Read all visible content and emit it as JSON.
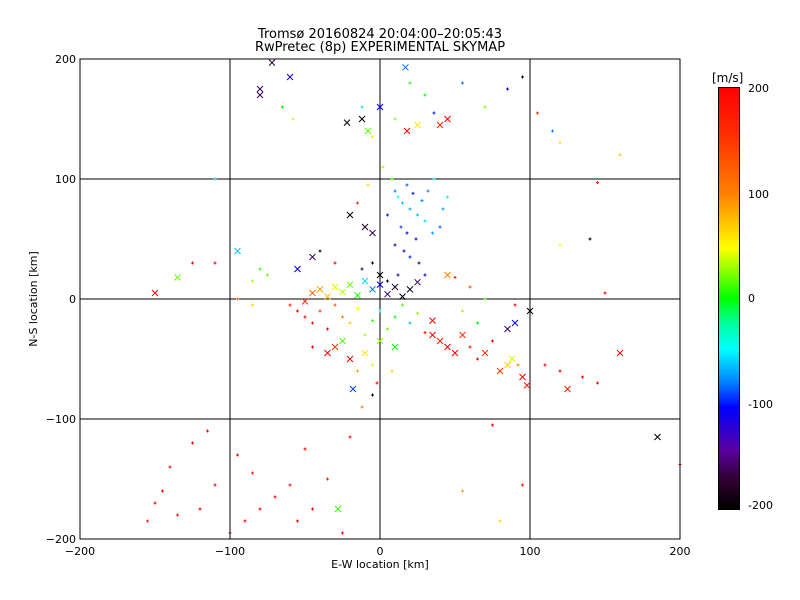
{
  "title_line1": "Tromsø 20160824 20:04:00–20:05:43",
  "title_line2": "RwPretec (8p) EXPERIMENTAL SKYMAP",
  "colorbar": {
    "unit": "[m/s]",
    "ticks": [
      "200",
      "100",
      "0",
      "-100",
      "-200"
    ],
    "range": [
      -200,
      200
    ],
    "colors_top_to_bottom": [
      "#ff0000",
      "#ff7f00",
      "#ffff00",
      "#00ff00",
      "#00ffff",
      "#0000ff",
      "#300030",
      "#000000"
    ]
  },
  "chart_data": {
    "type": "scatter",
    "title": "Tromsø 20160824 20:04:00–20:05:43",
    "subtitle": "RwPretec (8p) EXPERIMENTAL SKYMAP",
    "xlabel": "E-W location [km]",
    "ylabel": "N-S location [km]",
    "xlim": [
      -200,
      200
    ],
    "ylim": [
      -200,
      200
    ],
    "xticks": [
      "-200",
      "-100",
      "0",
      "100",
      "200"
    ],
    "yticks": [
      "-200",
      "-100",
      "0",
      "100",
      "200"
    ],
    "grid": true,
    "markers": [
      "x",
      "+"
    ],
    "colorbar_range": [
      -200,
      200
    ],
    "clusters": [
      {
        "description": "dense core",
        "x_range": [
          -60,
          60
        ],
        "y_range": [
          -40,
          20
        ],
        "velocity_mix": "red-yellow-green with blue"
      },
      {
        "description": "northern plume",
        "x_range": [
          5,
          50
        ],
        "y_range": [
          20,
          110
        ],
        "velocity_mix": "cyan-blue"
      },
      {
        "description": "far north scattered",
        "x_range": [
          -80,
          100
        ],
        "y_range": [
          110,
          200
        ],
        "velocity_mix": "mixed"
      },
      {
        "description": "southeast tail",
        "x_range": [
          30,
          170
        ],
        "y_range": [
          -80,
          -20
        ],
        "velocity_mix": "red"
      },
      {
        "description": "southwest scattered",
        "x_range": [
          -160,
          -80
        ],
        "y_range": [
          -200,
          -110
        ],
        "velocity_mix": "red"
      }
    ],
    "points": [
      [
        -80,
        175,
        -150,
        "x"
      ],
      [
        -80,
        170,
        -160,
        "x"
      ],
      [
        -72,
        197,
        -170,
        "x"
      ],
      [
        -60,
        185,
        -120,
        "x"
      ],
      [
        -65,
        160,
        0,
        "+"
      ],
      [
        -58,
        150,
        80,
        "+"
      ],
      [
        -22,
        147,
        -210,
        "x"
      ],
      [
        -12,
        150,
        -200,
        "x"
      ],
      [
        -8,
        140,
        30,
        "x"
      ],
      [
        -5,
        135,
        110,
        "+"
      ],
      [
        0,
        160,
        -100,
        "x"
      ],
      [
        10,
        150,
        50,
        "+"
      ],
      [
        18,
        140,
        200,
        "x"
      ],
      [
        25,
        145,
        110,
        "x"
      ],
      [
        30,
        170,
        0,
        "+"
      ],
      [
        36,
        155,
        -90,
        "+"
      ],
      [
        40,
        145,
        190,
        "x"
      ],
      [
        45,
        150,
        200,
        "x"
      ],
      [
        55,
        180,
        -60,
        "+"
      ],
      [
        70,
        160,
        40,
        "+"
      ],
      [
        85,
        175,
        -100,
        "+"
      ],
      [
        95,
        185,
        -200,
        "+"
      ],
      [
        105,
        155,
        180,
        "+"
      ],
      [
        115,
        140,
        -60,
        "+"
      ],
      [
        120,
        130,
        110,
        "+"
      ],
      [
        17,
        193,
        -60,
        "x"
      ],
      [
        -12,
        160,
        -30,
        "+"
      ],
      [
        20,
        180,
        20,
        "+"
      ],
      [
        160,
        120,
        120,
        "+"
      ],
      [
        -110,
        100,
        -40,
        "+"
      ],
      [
        10,
        90,
        -60,
        "+"
      ],
      [
        12,
        85,
        -20,
        "+"
      ],
      [
        15,
        80,
        -40,
        "+"
      ],
      [
        18,
        95,
        -70,
        "+"
      ],
      [
        20,
        75,
        -50,
        "+"
      ],
      [
        22,
        88,
        -90,
        "+"
      ],
      [
        25,
        70,
        -40,
        "+"
      ],
      [
        28,
        82,
        -60,
        "+"
      ],
      [
        30,
        65,
        -30,
        "+"
      ],
      [
        14,
        60,
        -80,
        "+"
      ],
      [
        18,
        55,
        -110,
        "+"
      ],
      [
        24,
        50,
        -100,
        "+"
      ],
      [
        10,
        45,
        -140,
        "+"
      ],
      [
        16,
        40,
        -120,
        "+"
      ],
      [
        20,
        35,
        -90,
        "+"
      ],
      [
        26,
        30,
        -150,
        "+"
      ],
      [
        35,
        55,
        -50,
        "+"
      ],
      [
        40,
        60,
        -70,
        "+"
      ],
      [
        5,
        70,
        -90,
        "+"
      ],
      [
        8,
        100,
        20,
        "+"
      ],
      [
        32,
        90,
        -60,
        "+"
      ],
      [
        36,
        100,
        -30,
        "+"
      ],
      [
        42,
        75,
        -50,
        "+"
      ],
      [
        45,
        85,
        -20,
        "+"
      ],
      [
        2,
        110,
        60,
        "+"
      ],
      [
        -8,
        95,
        120,
        "+"
      ],
      [
        -15,
        80,
        180,
        "+"
      ],
      [
        -20,
        70,
        -200,
        "x"
      ],
      [
        -10,
        60,
        -180,
        "x"
      ],
      [
        -5,
        55,
        -150,
        "x"
      ],
      [
        -5,
        30,
        -200,
        "+"
      ],
      [
        -12,
        25,
        -170,
        "+"
      ],
      [
        0,
        20,
        -200,
        "x"
      ],
      [
        5,
        15,
        -210,
        "+"
      ],
      [
        12,
        20,
        -120,
        "+"
      ],
      [
        30,
        20,
        -130,
        "+"
      ],
      [
        45,
        20,
        150,
        "x"
      ],
      [
        50,
        18,
        190,
        "+"
      ],
      [
        60,
        10,
        170,
        "+"
      ],
      [
        70,
        0,
        30,
        "+"
      ],
      [
        -40,
        40,
        -200,
        "+"
      ],
      [
        -45,
        35,
        -150,
        "x"
      ],
      [
        -30,
        30,
        200,
        "+"
      ],
      [
        -55,
        25,
        -100,
        "x"
      ],
      [
        -75,
        20,
        40,
        "+"
      ],
      [
        -85,
        15,
        60,
        "+"
      ],
      [
        -80,
        25,
        20,
        "+"
      ],
      [
        -95,
        40,
        -40,
        "x"
      ],
      [
        -150,
        5,
        200,
        "x"
      ],
      [
        -135,
        18,
        40,
        "x"
      ],
      [
        -110,
        30,
        200,
        "+"
      ],
      [
        -95,
        0,
        160,
        "+"
      ],
      [
        -60,
        -5,
        190,
        "+"
      ],
      [
        -55,
        -10,
        210,
        "+"
      ],
      [
        -50,
        -15,
        200,
        "+"
      ],
      [
        -45,
        -20,
        195,
        "+"
      ],
      [
        -40,
        -10,
        180,
        "+"
      ],
      [
        -35,
        -25,
        205,
        "+"
      ],
      [
        -30,
        -5,
        170,
        "+"
      ],
      [
        -25,
        -15,
        150,
        "+"
      ],
      [
        -20,
        -20,
        120,
        "+"
      ],
      [
        -15,
        -8,
        100,
        "+"
      ],
      [
        -10,
        -30,
        60,
        "+"
      ],
      [
        -5,
        -18,
        20,
        "+"
      ],
      [
        0,
        -10,
        -20,
        "+"
      ],
      [
        5,
        -25,
        40,
        "+"
      ],
      [
        10,
        -15,
        0,
        "+"
      ],
      [
        15,
        -5,
        30,
        "+"
      ],
      [
        20,
        -20,
        -40,
        "+"
      ],
      [
        25,
        -12,
        60,
        "+"
      ],
      [
        30,
        -28,
        190,
        "+"
      ],
      [
        35,
        -18,
        200,
        "x"
      ],
      [
        -50,
        -2,
        185,
        "x"
      ],
      [
        -45,
        5,
        160,
        "x"
      ],
      [
        -40,
        8,
        140,
        "x"
      ],
      [
        -35,
        2,
        130,
        "x"
      ],
      [
        -30,
        10,
        90,
        "x"
      ],
      [
        -25,
        6,
        70,
        "x"
      ],
      [
        -20,
        12,
        40,
        "x"
      ],
      [
        -15,
        3,
        10,
        "x"
      ],
      [
        -10,
        15,
        -30,
        "x"
      ],
      [
        -5,
        8,
        -60,
        "x"
      ],
      [
        0,
        12,
        -110,
        "x"
      ],
      [
        5,
        4,
        -140,
        "x"
      ],
      [
        10,
        10,
        -180,
        "x"
      ],
      [
        15,
        2,
        -200,
        "x"
      ],
      [
        20,
        8,
        -190,
        "x"
      ],
      [
        25,
        14,
        -160,
        "x"
      ],
      [
        -30,
        -40,
        180,
        "x"
      ],
      [
        -20,
        -50,
        200,
        "x"
      ],
      [
        -10,
        -45,
        110,
        "x"
      ],
      [
        0,
        -35,
        60,
        "x"
      ],
      [
        10,
        -40,
        0,
        "x"
      ],
      [
        -15,
        -60,
        140,
        "+"
      ],
      [
        -5,
        -55,
        80,
        "+"
      ],
      [
        8,
        -60,
        120,
        "+"
      ],
      [
        -25,
        -35,
        30,
        "x"
      ],
      [
        -35,
        -45,
        210,
        "x"
      ],
      [
        -45,
        -40,
        200,
        "+"
      ],
      [
        -5,
        -80,
        -210,
        "+"
      ],
      [
        -18,
        -75,
        -80,
        "x"
      ],
      [
        -12,
        -90,
        150,
        "+"
      ],
      [
        -2,
        -70,
        200,
        "+"
      ],
      [
        35,
        -30,
        200,
        "x"
      ],
      [
        40,
        -35,
        190,
        "x"
      ],
      [
        45,
        -40,
        210,
        "x"
      ],
      [
        50,
        -45,
        200,
        "x"
      ],
      [
        55,
        -30,
        180,
        "x"
      ],
      [
        60,
        -40,
        195,
        "+"
      ],
      [
        65,
        -50,
        200,
        "+"
      ],
      [
        70,
        -45,
        185,
        "x"
      ],
      [
        75,
        -35,
        200,
        "+"
      ],
      [
        80,
        -60,
        180,
        "x"
      ],
      [
        85,
        -55,
        120,
        "x"
      ],
      [
        88,
        -50,
        90,
        "x"
      ],
      [
        92,
        -55,
        150,
        "+"
      ],
      [
        95,
        -65,
        200,
        "x"
      ],
      [
        98,
        -72,
        190,
        "x"
      ],
      [
        110,
        -55,
        200,
        "+"
      ],
      [
        120,
        -60,
        200,
        "+"
      ],
      [
        125,
        -75,
        190,
        "x"
      ],
      [
        135,
        -65,
        210,
        "+"
      ],
      [
        145,
        -70,
        200,
        "+"
      ],
      [
        160,
        -45,
        200,
        "x"
      ],
      [
        90,
        -5,
        200,
        "+"
      ],
      [
        85,
        -25,
        -150,
        "x"
      ],
      [
        90,
        -20,
        -120,
        "x"
      ],
      [
        100,
        -10,
        -200,
        "x"
      ],
      [
        55,
        -10,
        60,
        "+"
      ],
      [
        65,
        -20,
        0,
        "+"
      ],
      [
        -150,
        -170,
        200,
        "+"
      ],
      [
        -145,
        -160,
        210,
        "+"
      ],
      [
        -135,
        -180,
        190,
        "+"
      ],
      [
        -125,
        -120,
        200,
        "+"
      ],
      [
        -120,
        -175,
        205,
        "+"
      ],
      [
        -110,
        -155,
        200,
        "+"
      ],
      [
        -100,
        -195,
        195,
        "+"
      ],
      [
        -95,
        -130,
        200,
        "+"
      ],
      [
        -90,
        -185,
        210,
        "+"
      ],
      [
        -85,
        -145,
        190,
        "+"
      ],
      [
        -80,
        -175,
        200,
        "+"
      ],
      [
        -70,
        -165,
        200,
        "+"
      ],
      [
        -60,
        -155,
        195,
        "+"
      ],
      [
        -55,
        -185,
        205,
        "+"
      ],
      [
        -50,
        -125,
        200,
        "+"
      ],
      [
        -45,
        -175,
        200,
        "+"
      ],
      [
        -35,
        -150,
        190,
        "+"
      ],
      [
        -28,
        -175,
        20,
        "x"
      ],
      [
        -25,
        -195,
        200,
        "+"
      ],
      [
        -20,
        -115,
        200,
        "+"
      ],
      [
        -140,
        -140,
        200,
        "+"
      ],
      [
        -115,
        -110,
        200,
        "+"
      ],
      [
        -155,
        -185,
        190,
        "+"
      ],
      [
        55,
        -160,
        140,
        "+"
      ],
      [
        75,
        -105,
        200,
        "+"
      ],
      [
        95,
        -155,
        190,
        "+"
      ],
      [
        80,
        -185,
        120,
        "+"
      ],
      [
        185,
        -115,
        -200,
        "x"
      ],
      [
        200,
        -138,
        200,
        "+"
      ],
      [
        145,
        97,
        190,
        "+"
      ],
      [
        140,
        50,
        -200,
        "+"
      ],
      [
        150,
        5,
        200,
        "+"
      ],
      [
        -125,
        30,
        200,
        "+"
      ],
      [
        -85,
        -5,
        120,
        "+"
      ],
      [
        120,
        45,
        100,
        "+"
      ]
    ]
  }
}
